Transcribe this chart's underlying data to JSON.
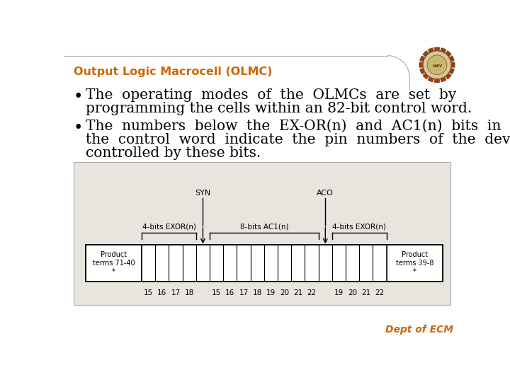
{
  "title": "Output Logic Macrocell (OLMC)",
  "title_color": "#CC6600",
  "slide_bg": "#FFFFFF",
  "header_bg": "#F8F7F4",
  "header_line_color": "#AAAAAA",
  "bullet1_line1": "The  operating  modes  of  the  OLMCs  are  set  by",
  "bullet1_line2": "programming the cells within an 82-bit control word.",
  "bullet2_line1": "The  numbers  below  the  EX-OR(n)  and  AC1(n)  bits  in",
  "bullet2_line2": "the  control  word  indicate  the  pin  numbers  of  the  devices",
  "bullet2_line3": "controlled by these bits.",
  "dept_label": "Dept of ECM",
  "dept_color": "#CC6600",
  "diagram_bg": "#E8E4DE",
  "label_exor_left": "4-bits EXOR(n)",
  "label_ac1": "8-bits AC1(n)",
  "label_exor_right": "4-bits EXOR(n)",
  "label_syn": "SYN",
  "label_aco": "ACO",
  "label_prod_left": "Product\nterms 71-40\n*",
  "label_prod_right": "Product\nterms 39-8\n*",
  "ticks_left": [
    "15",
    "16",
    "17",
    "18"
  ],
  "ticks_mid": [
    "15",
    "16",
    "17",
    "18",
    "19",
    "20",
    "21",
    "22"
  ],
  "ticks_right": [
    "19",
    "20",
    "21",
    "22"
  ],
  "text_font": "DejaVu Serif",
  "bullet_fontsize": 14.5,
  "title_fontsize": 11.5
}
